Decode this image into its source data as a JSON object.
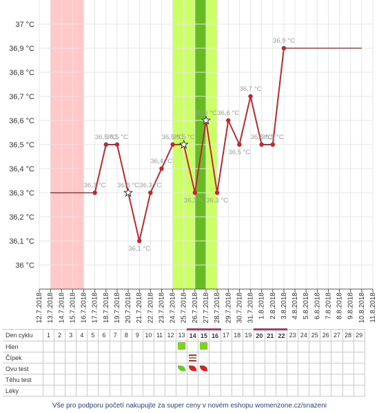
{
  "chart_data": {
    "type": "line",
    "title": "",
    "xlabel": "",
    "ylabel": "",
    "y_unit": "°C",
    "ylim": [
      35.9,
      37.1
    ],
    "y_ticks": [
      "37 °C",
      "36,9 °C",
      "36,8 °C",
      "36,7 °C",
      "36,6 °C",
      "36,5 °C",
      "36,4 °C",
      "36,3 °C",
      "36,2 °C",
      "36,1 °C",
      "36 °C"
    ],
    "y_tick_values": [
      37.0,
      36.9,
      36.8,
      36.7,
      36.6,
      36.5,
      36.4,
      36.3,
      36.2,
      36.1,
      36.0
    ],
    "x_labels": [
      "12.7.2018",
      "13.7.2018",
      "14.7.2018",
      "15.7.2018",
      "16.7.2018",
      "17.7.2018",
      "18.7.2018",
      "19.7.2018",
      "20.7.2018",
      "21.7.2018",
      "22.7.2018",
      "23.7.2018",
      "24.7.2018",
      "25.7.2018",
      "26.7.2018",
      "27.7.2018",
      "28.7.2018",
      "29.7.2018",
      "30.7.2018",
      "31.7.2018",
      "1.8.2018",
      "2.8.2018",
      "3.8.2018",
      "4.8.2018",
      "5.8.2018",
      "6.8.2018",
      "7.8.2018",
      "8.8.2018",
      "9.8.2018",
      "10.8.2018",
      "11.8.2018"
    ],
    "series": [
      {
        "color": "#c1272d",
        "points": [
          {
            "x": "17.7.2018",
            "y": 36.3,
            "label": "36,3 °C",
            "marker": "circle"
          },
          {
            "x": "18.7.2018",
            "y": 36.5,
            "label": "36,5 °C",
            "marker": "circle"
          },
          {
            "x": "19.7.2018",
            "y": 36.5,
            "label": "36,5 °C",
            "marker": "circle"
          },
          {
            "x": "20.7.2018",
            "y": 36.3,
            "label": "36,3 °C",
            "marker": "star"
          },
          {
            "x": "21.7.2018",
            "y": 36.1,
            "label": "36,1 °C",
            "marker": "circle"
          },
          {
            "x": "22.7.2018",
            "y": 36.3,
            "label": "36,3 °C",
            "marker": "circle"
          },
          {
            "x": "23.7.2018",
            "y": 36.4,
            "label": "36,4 °C",
            "marker": "circle"
          },
          {
            "x": "24.7.2018",
            "y": 36.5,
            "label": "36,5 °C",
            "marker": "circle"
          },
          {
            "x": "25.7.2018",
            "y": 36.5,
            "label": "36,5 °C",
            "marker": "star"
          },
          {
            "x": "26.7.2018",
            "y": 36.3,
            "label": "36,3 °C",
            "marker": "circle"
          },
          {
            "x": "27.7.2018",
            "y": 36.6,
            "label": "36,6 °C",
            "marker": "star"
          },
          {
            "x": "28.7.2018",
            "y": 36.3,
            "label": "36,3 °C",
            "marker": "circle"
          },
          {
            "x": "29.7.2018",
            "y": 36.6,
            "label": "36,6 °C",
            "marker": "circle"
          },
          {
            "x": "30.7.2018",
            "y": 36.5,
            "label": "36,5 °C",
            "marker": "circle"
          },
          {
            "x": "31.7.2018",
            "y": 36.7,
            "label": "36,7 °C",
            "marker": "circle"
          },
          {
            "x": "1.8.2018",
            "y": 36.5,
            "label": "36,5 °C",
            "marker": "circle"
          },
          {
            "x": "2.8.2018",
            "y": 36.5,
            "label": "36,5 °C",
            "marker": "circle"
          },
          {
            "x": "3.8.2018",
            "y": 36.9,
            "label": "36,9 °C",
            "marker": "circle"
          }
        ]
      }
    ],
    "reference_lines": [
      {
        "from": "13.7.2018",
        "to": "17.7.2018",
        "y": 36.3
      },
      {
        "from": "3.8.2018",
        "to": "10.8.2018",
        "y": 36.9
      }
    ],
    "bands": [
      {
        "from": "13.7.2018",
        "to": "16.7.2018",
        "color": "#ffc9c9"
      },
      {
        "from": "24.7.2018",
        "to": "28.7.2018",
        "color": "#ccff66"
      },
      {
        "from": "26.7.2018",
        "to": "27.7.2018",
        "color": "#66bb22"
      }
    ],
    "grid": true,
    "legend": "none"
  },
  "cycle_table": {
    "rows": [
      "Den cyklu",
      "Hlen",
      "Čípek",
      "Ovu test",
      "Těhu test",
      "Léky"
    ],
    "days": [
      "1",
      "2",
      "3",
      "4",
      "5",
      "6",
      "7",
      "8",
      "9",
      "10",
      "11",
      "12",
      "13",
      "14",
      "15",
      "16",
      "17",
      "18",
      "19",
      "20",
      "21",
      "22",
      "23",
      "24",
      "25",
      "26",
      "27",
      "28",
      "29"
    ],
    "highlighted_days": [
      "14",
      "15",
      "16",
      "20",
      "21",
      "22"
    ],
    "hlen": {
      "13": "square",
      "15": "square"
    },
    "cipek": {
      "14": "bars"
    },
    "ovu_test": {
      "13": "green",
      "14": "red",
      "15": "red"
    }
  },
  "footer": {
    "text": "Vše pro podporu početí nakupujte za super ceny v novém eshopu womenzone.cz/snazeni"
  },
  "colors": {
    "line": "#c1272d",
    "axis_text": "#333333",
    "point_label": "#9a9a9a",
    "grid": "#e6e6e6",
    "highlight": "#d6246f",
    "footer": "#1f3f9c"
  }
}
